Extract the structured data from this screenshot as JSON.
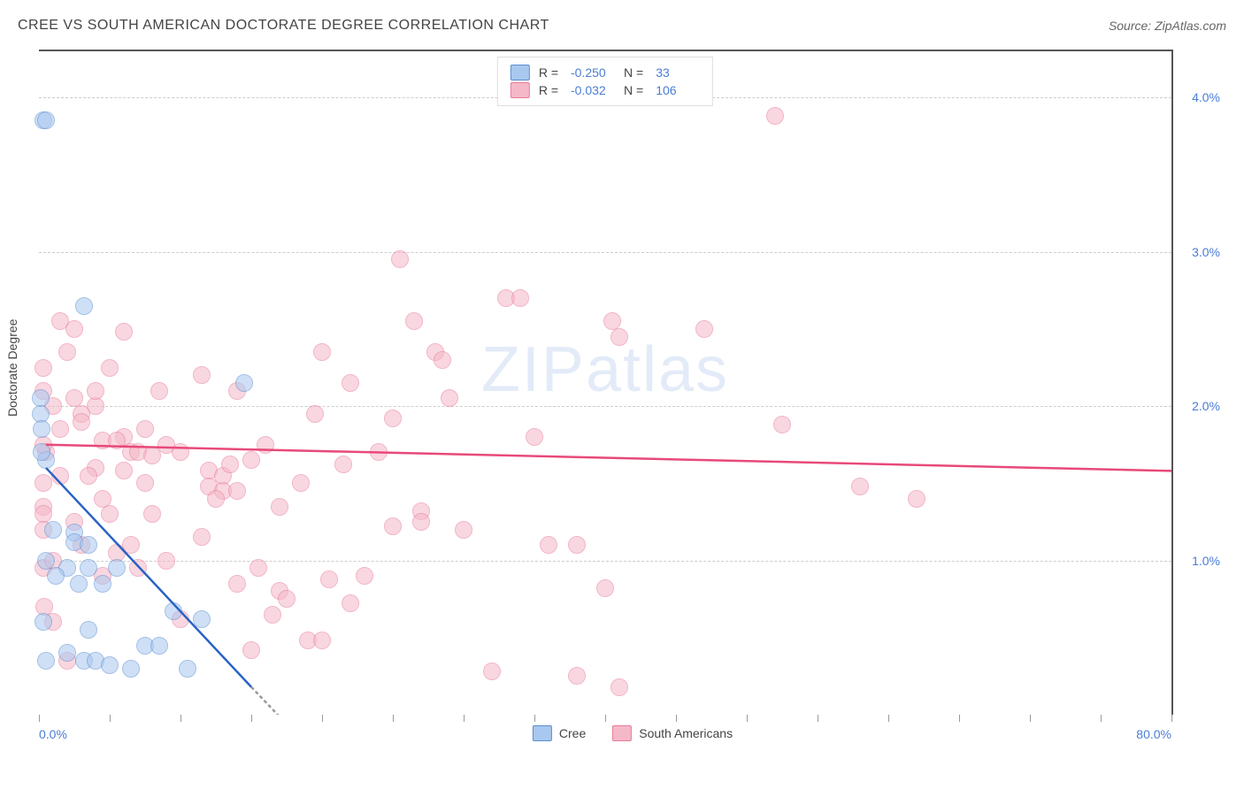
{
  "chart": {
    "type": "scatter",
    "title": "CREE VS SOUTH AMERICAN DOCTORATE DEGREE CORRELATION CHART",
    "source_label": "Source: ZipAtlas.com",
    "watermark_text_bold": "ZIP",
    "watermark_text_thin": "atlas",
    "y_axis_label": "Doctorate Degree",
    "background_color": "#ffffff",
    "grid_color": "#cccccc",
    "border_color": "#555555",
    "label_color": "#4a7dd6",
    "text_color": "#444444",
    "xlim": [
      0,
      80
    ],
    "ylim": [
      0,
      4.3
    ],
    "x_tick_positions": [
      0,
      5,
      10,
      15,
      20,
      25,
      30,
      35,
      40,
      45,
      50,
      55,
      60,
      65,
      70,
      75,
      80
    ],
    "x_tick_labels": {
      "0": "0.0%",
      "80": "80.0%"
    },
    "y_grid_positions": [
      1.0,
      2.0,
      3.0,
      4.0
    ],
    "y_tick_labels": {
      "1.0": "1.0%",
      "2.0": "2.0%",
      "3.0": "3.0%",
      "4.0": "4.0%"
    },
    "title_fontsize": 16,
    "label_fontsize": 14,
    "tick_fontsize": 14
  },
  "series": {
    "cree": {
      "label": "Cree",
      "fill_color": "#a8c8f0",
      "stroke_color": "#5a8dd0",
      "line_color": "#2962c4",
      "marker_radius": 10,
      "fill_opacity": 0.55,
      "R": "-0.250",
      "N": "33",
      "trend": {
        "x1": 0.5,
        "y1": 1.6,
        "x2": 15,
        "y2": 0.18
      },
      "trend_dash": {
        "x1": 15,
        "y1": 0.18,
        "x2": 18,
        "y2": -0.11
      },
      "points": [
        [
          0.3,
          3.85
        ],
        [
          0.5,
          3.85
        ],
        [
          3.2,
          2.65
        ],
        [
          0.1,
          2.05
        ],
        [
          0.1,
          1.95
        ],
        [
          0.2,
          1.85
        ],
        [
          14.5,
          2.15
        ],
        [
          0.5,
          1.65
        ],
        [
          0.2,
          1.7
        ],
        [
          1.0,
          1.2
        ],
        [
          2.5,
          1.18
        ],
        [
          2.5,
          1.12
        ],
        [
          3.5,
          1.1
        ],
        [
          0.5,
          1.0
        ],
        [
          2.0,
          0.95
        ],
        [
          1.2,
          0.9
        ],
        [
          3.5,
          0.95
        ],
        [
          2.8,
          0.85
        ],
        [
          4.5,
          0.85
        ],
        [
          5.5,
          0.95
        ],
        [
          0.3,
          0.6
        ],
        [
          3.5,
          0.55
        ],
        [
          9.5,
          0.67
        ],
        [
          11.5,
          0.62
        ],
        [
          7.5,
          0.45
        ],
        [
          8.5,
          0.45
        ],
        [
          2.0,
          0.4
        ],
        [
          0.5,
          0.35
        ],
        [
          3.2,
          0.35
        ],
        [
          4.0,
          0.35
        ],
        [
          5.0,
          0.32
        ],
        [
          6.5,
          0.3
        ],
        [
          10.5,
          0.3
        ]
      ]
    },
    "south_americans": {
      "label": "South Americans",
      "fill_color": "#f5b8c8",
      "stroke_color": "#e87a9a",
      "line_color": "#e8497a",
      "marker_radius": 10,
      "fill_opacity": 0.55,
      "R": "-0.032",
      "N": "106",
      "trend": {
        "x1": 0.5,
        "y1": 1.75,
        "x2": 80,
        "y2": 1.58
      },
      "points": [
        [
          52,
          3.88
        ],
        [
          25.5,
          2.95
        ],
        [
          33,
          2.7
        ],
        [
          34,
          2.7
        ],
        [
          40.5,
          2.55
        ],
        [
          26.5,
          2.55
        ],
        [
          1.5,
          2.55
        ],
        [
          2.5,
          2.5
        ],
        [
          47,
          2.5
        ],
        [
          41,
          2.45
        ],
        [
          20,
          2.35
        ],
        [
          2.0,
          2.35
        ],
        [
          28,
          2.35
        ],
        [
          28.5,
          2.3
        ],
        [
          5,
          2.25
        ],
        [
          11.5,
          2.2
        ],
        [
          22,
          2.15
        ],
        [
          14,
          2.1
        ],
        [
          0.3,
          2.1
        ],
        [
          1.0,
          2.0
        ],
        [
          29,
          2.05
        ],
        [
          4,
          2.0
        ],
        [
          3,
          1.95
        ],
        [
          19.5,
          1.95
        ],
        [
          25,
          1.92
        ],
        [
          52.5,
          1.88
        ],
        [
          1.5,
          1.85
        ],
        [
          6,
          1.8
        ],
        [
          4.5,
          1.78
        ],
        [
          5.5,
          1.78
        ],
        [
          9,
          1.75
        ],
        [
          16,
          1.75
        ],
        [
          6.5,
          1.7
        ],
        [
          0.5,
          1.7
        ],
        [
          7,
          1.7
        ],
        [
          10,
          1.7
        ],
        [
          8,
          1.68
        ],
        [
          15,
          1.65
        ],
        [
          21.5,
          1.62
        ],
        [
          4,
          1.6
        ],
        [
          6,
          1.58
        ],
        [
          12,
          1.58
        ],
        [
          13,
          1.55
        ],
        [
          18.5,
          1.5
        ],
        [
          7.5,
          1.5
        ],
        [
          0.3,
          1.5
        ],
        [
          58,
          1.48
        ],
        [
          12,
          1.48
        ],
        [
          13,
          1.45
        ],
        [
          14,
          1.45
        ],
        [
          12.5,
          1.4
        ],
        [
          4.5,
          1.4
        ],
        [
          0.3,
          1.35
        ],
        [
          0.3,
          1.3
        ],
        [
          62,
          1.4
        ],
        [
          5,
          1.3
        ],
        [
          27,
          1.32
        ],
        [
          8,
          1.3
        ],
        [
          27,
          1.25
        ],
        [
          25,
          1.22
        ],
        [
          3,
          1.1
        ],
        [
          11.5,
          1.15
        ],
        [
          6.5,
          1.1
        ],
        [
          36,
          1.1
        ],
        [
          38,
          1.1
        ],
        [
          9,
          1.0
        ],
        [
          15.5,
          0.95
        ],
        [
          7,
          0.95
        ],
        [
          23,
          0.9
        ],
        [
          20.5,
          0.88
        ],
        [
          14,
          0.85
        ],
        [
          17,
          0.8
        ],
        [
          40,
          0.82
        ],
        [
          17.5,
          0.75
        ],
        [
          22,
          0.72
        ],
        [
          0.4,
          0.7
        ],
        [
          16.5,
          0.65
        ],
        [
          1.0,
          0.6
        ],
        [
          19,
          0.48
        ],
        [
          20,
          0.48
        ],
        [
          15,
          0.42
        ],
        [
          32,
          0.28
        ],
        [
          38,
          0.25
        ],
        [
          41,
          0.18
        ],
        [
          0.3,
          1.2
        ],
        [
          3,
          1.9
        ],
        [
          4,
          2.1
        ],
        [
          6,
          2.48
        ],
        [
          0.3,
          2.25
        ],
        [
          2.5,
          1.25
        ],
        [
          0.3,
          0.95
        ],
        [
          1.0,
          1.0
        ],
        [
          10,
          0.62
        ],
        [
          13.5,
          1.62
        ],
        [
          2.5,
          2.05
        ],
        [
          0.3,
          1.75
        ],
        [
          5.5,
          1.05
        ],
        [
          8.5,
          2.1
        ],
        [
          3.5,
          1.55
        ],
        [
          17,
          1.35
        ],
        [
          24,
          1.7
        ],
        [
          30,
          1.2
        ],
        [
          35,
          1.8
        ],
        [
          2,
          0.35
        ],
        [
          1.5,
          1.55
        ],
        [
          4.5,
          0.9
        ],
        [
          7.5,
          1.85
        ]
      ]
    }
  },
  "legend_top": {
    "R_label": "R =",
    "N_label": "N ="
  },
  "legend_bottom": {
    "items": [
      "cree",
      "south_americans"
    ]
  }
}
